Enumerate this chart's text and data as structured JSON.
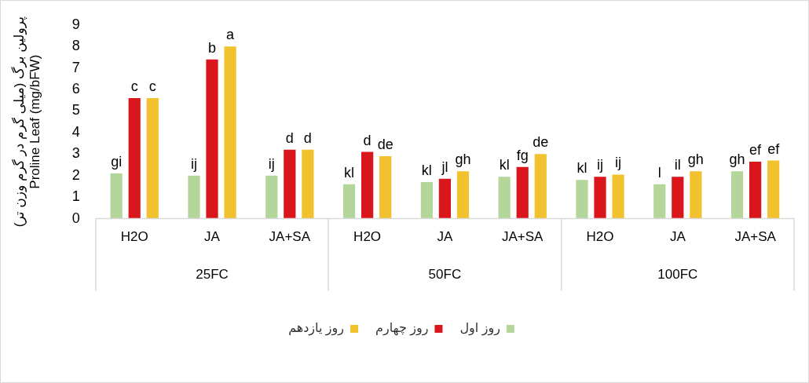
{
  "chart_data": {
    "type": "bar",
    "ylabel": "پرولین برگ (میلی گرم در گرم وزن تر)\nProline Leaf (mg/bFW)",
    "categories": [
      "H2O",
      "JA",
      "JA+SA",
      "H2O",
      "JA",
      "JA+SA",
      "H2O",
      "JA",
      "JA+SA"
    ],
    "annotations": [
      "25FC",
      "50FC",
      "100FC"
    ],
    "series": [
      {
        "name": "روز اول",
        "color": "#b5d69a",
        "values": [
          2.1,
          2.0,
          2.0,
          1.6,
          1.7,
          1.95,
          1.8,
          1.6,
          2.2
        ],
        "value_labels": [
          "gi",
          "ij",
          "ij",
          "kl",
          "kl",
          "kl",
          "kl",
          "l",
          "gh"
        ]
      },
      {
        "name": "روز چهارم",
        "color": "#d9161c",
        "values": [
          5.6,
          7.4,
          3.2,
          3.1,
          1.85,
          2.4,
          1.95,
          1.95,
          2.65
        ],
        "value_labels": [
          "c",
          "b",
          "d",
          "d",
          "jl",
          "fg",
          "ij",
          "il",
          "ef"
        ]
      },
      {
        "name": "روز یازدهم",
        "color": "#f2c12e",
        "values": [
          5.6,
          8.0,
          3.2,
          2.9,
          2.2,
          3.0,
          2.05,
          2.2,
          2.7
        ],
        "value_labels": [
          "c",
          "a",
          "d",
          "de",
          "gh",
          "de",
          "ij",
          "gh",
          "ef"
        ]
      }
    ],
    "ylim": [
      0,
      9
    ],
    "yticks": [
      0,
      1,
      2,
      3,
      4,
      5,
      6,
      7,
      8,
      9
    ],
    "legend": "bottom"
  }
}
